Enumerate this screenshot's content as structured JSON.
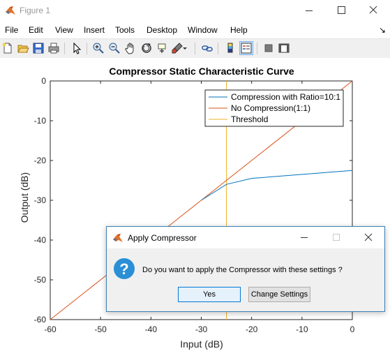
{
  "window": {
    "title": "Figure 1"
  },
  "menu": [
    "File",
    "Edit",
    "View",
    "Insert",
    "Tools",
    "Desktop",
    "Window",
    "Help"
  ],
  "toolbar_icons": [
    "new-figure-icon",
    "open-file-icon",
    "save-icon",
    "print-icon",
    "edit-plot-arrow-icon",
    "zoom-in-icon",
    "zoom-out-icon",
    "pan-hand-icon",
    "rotate-3d-icon",
    "data-cursor-icon",
    "brush-icon",
    "link-plot-icon",
    "colorbar-icon",
    "legend-icon",
    "hide-plot-tools-icon",
    "show-plot-tools-icon"
  ],
  "colors": {
    "compression": "#0072BD",
    "no_compression": "#D95319",
    "threshold": "#EDB120"
  },
  "chart_data": {
    "type": "line",
    "title": "Compressor Static Characteristic Curve",
    "xlabel": "Input (dB)",
    "ylabel": "Output (dB)",
    "xlim": [
      -60,
      0
    ],
    "ylim": [
      -60,
      0
    ],
    "xticks": [
      -60,
      -50,
      -40,
      -30,
      -20,
      -10,
      0
    ],
    "yticks": [
      0,
      -10,
      -20,
      -30,
      -40,
      -50,
      -60
    ],
    "xtick_labels": [
      "-60",
      "-50",
      "-40",
      "-30",
      "-20",
      "-10",
      "0"
    ],
    "ytick_labels": [
      "0",
      "-10",
      "-20",
      "-30",
      "-40",
      "-50",
      "-60"
    ],
    "grid": false,
    "legend": {
      "location": "top-right",
      "entries": [
        "Compression with Ratio=10:1",
        "No Compression(1:1)",
        "Threshold"
      ]
    },
    "series": [
      {
        "name": "Compression with Ratio=10:1",
        "x": [
          -30,
          -25,
          -20,
          0
        ],
        "y": [
          -30,
          -26,
          -24.5,
          -22.5
        ]
      },
      {
        "name": "No Compression(1:1)",
        "x": [
          -60,
          0
        ],
        "y": [
          -60,
          0
        ]
      },
      {
        "name": "Threshold",
        "x": [
          -25,
          -25
        ],
        "y": [
          -60,
          0
        ]
      }
    ]
  },
  "dialog": {
    "title": "Apply Compressor",
    "message": "Do you want to apply the Compressor with these settings ?",
    "yes_label": "Yes",
    "change_label": "Change Settings"
  }
}
